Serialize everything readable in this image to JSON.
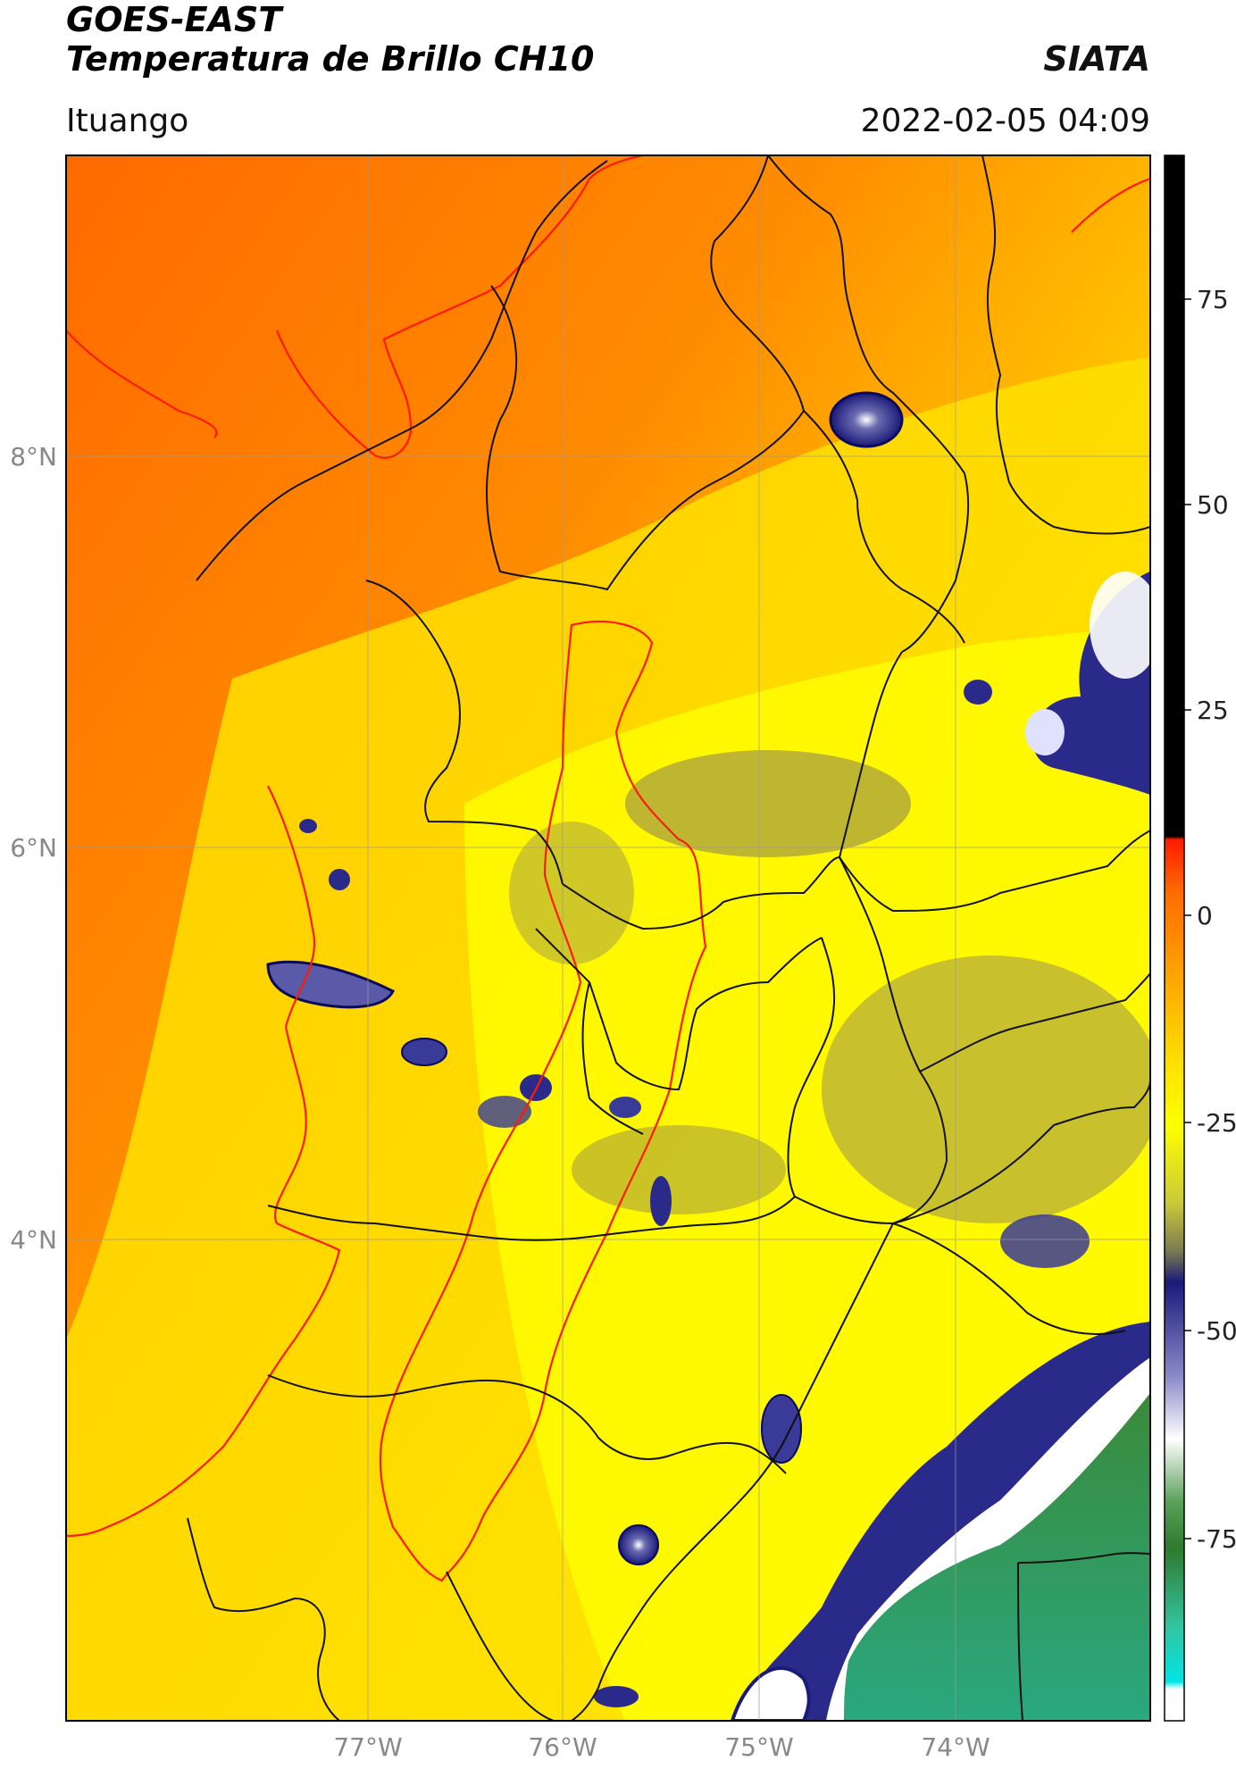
{
  "header": {
    "line1": "GOES-EAST",
    "line2": "Temperatura de Brillo CH10",
    "organization": "SIATA",
    "region": "Ituango",
    "timestamp": "2022-02-05 04:09"
  },
  "axes": {
    "lat_labels": [
      "8°N",
      "6°N",
      "4°N"
    ],
    "lon_labels": [
      "77°W",
      "76°W",
      "75°W",
      "74°W"
    ]
  },
  "colorbar": {
    "ticks": [
      "75",
      "50",
      "25",
      "0",
      "-25",
      "-50",
      "-75"
    ],
    "colors": {
      "top": "#000000",
      "red": "#ff1a00",
      "orange": "#ff8a00",
      "yellow": "#ffff00",
      "olive": "#9b9b3a",
      "navy": "#1a1a7a",
      "white": "#ffffff",
      "green": "#2e7a2e",
      "teal": "#33c4a0",
      "cyan": "#00e5e5"
    }
  },
  "legend_colors": {
    "sea": "#ff6a00",
    "land_warm": "#ffb000",
    "land": "#ffff00",
    "cold_cloud": "#2a2a8a",
    "boundaries": "#111111",
    "coast": "#ff1a00"
  }
}
